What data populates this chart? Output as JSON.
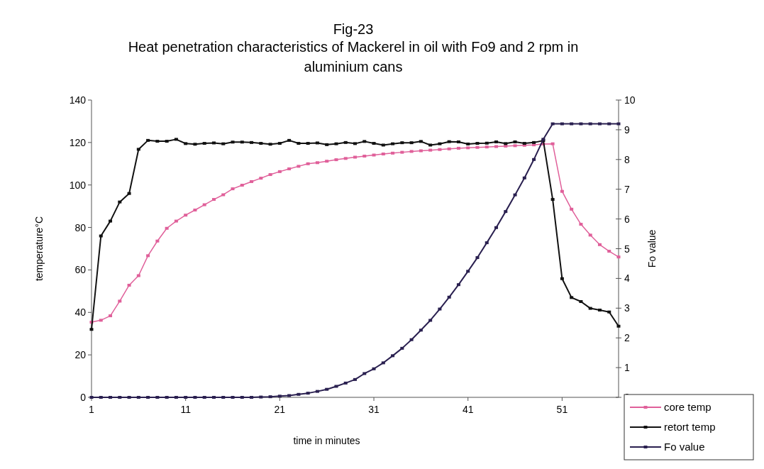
{
  "chart_data": {
    "type": "line",
    "title": "Fig-23",
    "subtitle": "Heat penetration characteristics of Mackerel in oil with Fo9 and 2 rpm in aluminium cans",
    "xlabel": "time in minutes",
    "ylabel": "temperature°C",
    "y2label": "Fo value",
    "x": [
      1,
      2,
      3,
      4,
      5,
      6,
      7,
      8,
      9,
      10,
      11,
      12,
      13,
      14,
      15,
      16,
      17,
      18,
      19,
      20,
      21,
      22,
      23,
      24,
      25,
      26,
      27,
      28,
      29,
      30,
      31,
      32,
      33,
      34,
      35,
      36,
      37,
      38,
      39,
      40,
      41,
      42,
      43,
      44,
      45,
      46,
      47,
      48,
      49,
      50,
      51,
      52,
      53,
      54,
      55,
      56,
      57
    ],
    "xlim": [
      1,
      57
    ],
    "xticks": [
      1,
      11,
      21,
      31,
      41,
      51
    ],
    "ylim": [
      0,
      140
    ],
    "yticks": [
      0,
      20,
      40,
      60,
      80,
      100,
      120,
      140
    ],
    "y2lim": [
      0,
      10
    ],
    "y2ticks": [
      0,
      1,
      2,
      3,
      4,
      5,
      6,
      7,
      8,
      9,
      10
    ],
    "marker": "square",
    "line_style": "solid",
    "grid": false,
    "legend": "bottom right",
    "series": [
      {
        "name": "core temp",
        "color": "#e0609a",
        "values": [
          35.4,
          36.3,
          38.4,
          45.3,
          52.8,
          57.3,
          66.7,
          73.6,
          79.6,
          83,
          85.8,
          88.2,
          90.7,
          93.2,
          95.4,
          98.2,
          99.9,
          101.6,
          103.2,
          104.9,
          106.3,
          107.6,
          108.8,
          110,
          110.5,
          111.2,
          111.9,
          112.5,
          113.1,
          113.6,
          114.1,
          114.6,
          115,
          115.4,
          115.8,
          116.1,
          116.4,
          116.7,
          117,
          117.3,
          117.5,
          117.7,
          117.9,
          118.1,
          118.3,
          118.5,
          118.7,
          118.9,
          119.3,
          119.4,
          97,
          88.6,
          81.5,
          76.4,
          71.9,
          68.8,
          66.1
        ]
      },
      {
        "name": "retort temp",
        "color": "#111111",
        "values": [
          32,
          76,
          83,
          92,
          96,
          116.8,
          121,
          120.6,
          120.6,
          121.5,
          119.5,
          119.2,
          119.6,
          119.8,
          119.4,
          120.2,
          120.2,
          120,
          119.6,
          119.2,
          119.6,
          121,
          119.6,
          119.6,
          119.8,
          119,
          119.4,
          120,
          119.5,
          120.5,
          119.6,
          118.8,
          119.4,
          119.9,
          119.9,
          120.5,
          118.8,
          119.4,
          120.4,
          120.3,
          119.3,
          119.6,
          119.7,
          120.3,
          119.5,
          120.3,
          119.6,
          120,
          120.9,
          93.2,
          55.9,
          47,
          45.1,
          41.9,
          41.1,
          40.2,
          33.5
        ]
      },
      {
        "name": "Fo value",
        "color": "#2a2050",
        "axis": "y2",
        "values": [
          0,
          0,
          0,
          0,
          0,
          0,
          0,
          0,
          0,
          0,
          0,
          0,
          0,
          0,
          0,
          0,
          0,
          0,
          0.01,
          0.02,
          0.04,
          0.06,
          0.1,
          0.14,
          0.2,
          0.27,
          0.37,
          0.48,
          0.6,
          0.8,
          0.96,
          1.16,
          1.4,
          1.65,
          1.94,
          2.26,
          2.59,
          2.97,
          3.37,
          3.79,
          4.24,
          4.7,
          5.2,
          5.71,
          6.25,
          6.81,
          7.38,
          8,
          8.68,
          9.2,
          9.2,
          9.2,
          9.2,
          9.2,
          9.2,
          9.2,
          9.2
        ]
      }
    ]
  }
}
